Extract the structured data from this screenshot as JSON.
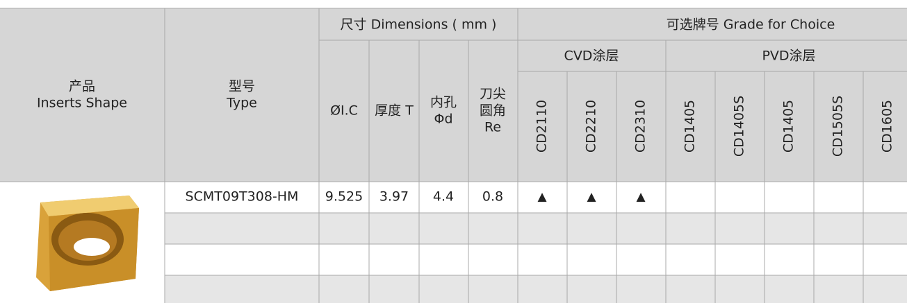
{
  "table": {
    "headers": {
      "shape": [
        "产品",
        "Inserts Shape"
      ],
      "type": [
        "型号",
        "Type"
      ],
      "dimensions": "尺寸 Dimensions ( mm )",
      "dimension_columns": [
        [
          "ØI.C"
        ],
        [
          "厚度 T"
        ],
        [
          "内孔",
          "Φd"
        ],
        [
          "刀尖",
          "圆角",
          "Re"
        ]
      ],
      "grade": "可选牌号 Grade for Choice",
      "groups": [
        "CVD涂层",
        "PVD涂层"
      ],
      "grades": [
        "CD2110",
        "CD2210",
        "CD2310",
        "CD1405",
        "CD1405S",
        "CD1405",
        "CD1505S",
        "CD1605"
      ]
    },
    "rows": [
      {
        "type": "SCMT09T308-HM",
        "dimensions": [
          9.525,
          3.97,
          4.4,
          0.8
        ],
        "grades": [
          "▲",
          "▲",
          "▲",
          null,
          null,
          null,
          null,
          null
        ]
      }
    ]
  }
}
